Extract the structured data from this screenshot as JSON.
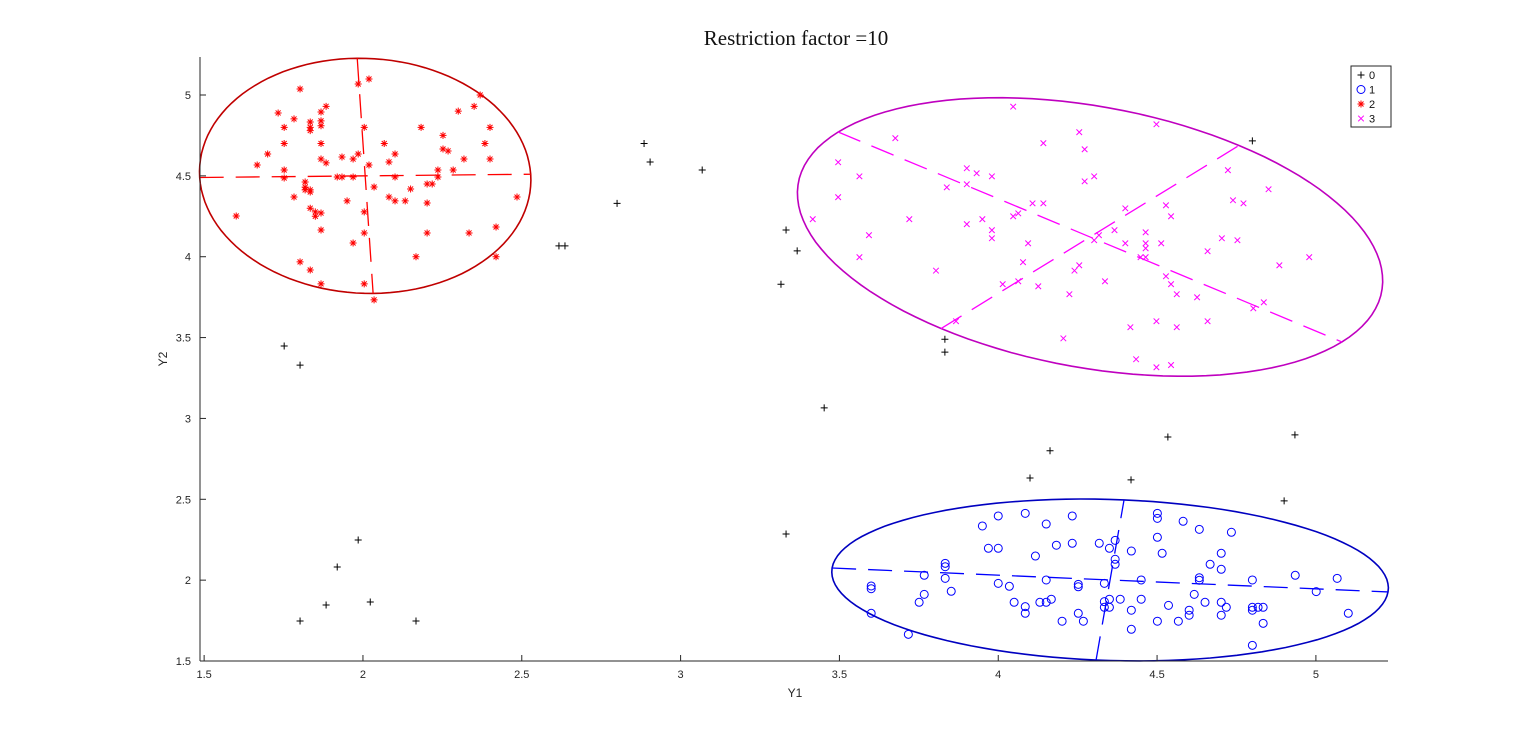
{
  "chart_data": {
    "type": "scatter",
    "title": "Restriction factor =10",
    "xlabel": "Y1",
    "ylabel": "Y2",
    "xlim": [
      1.487,
      5.227
    ],
    "ylim": [
      1.5,
      5.235
    ],
    "xticks": [
      "1.5",
      "2",
      "2.5",
      "3",
      "3.5",
      "4",
      "4.5",
      "5"
    ],
    "yticks": [
      "1.5",
      "2",
      "2.5",
      "3",
      "3.5",
      "4",
      "4.5",
      "5"
    ],
    "grid": false,
    "legend_position": "top-right",
    "series": [
      {
        "name": "0",
        "marker": "plus",
        "color": "#000000",
        "points": [
          [
            2.885,
            4.7
          ],
          [
            2.904,
            4.586
          ],
          [
            3.068,
            4.536
          ],
          [
            2.8,
            4.33
          ],
          [
            2.617,
            4.067
          ],
          [
            2.636,
            4.067
          ],
          [
            3.332,
            4.165
          ],
          [
            3.367,
            4.036
          ],
          [
            3.316,
            3.83
          ],
          [
            3.832,
            3.49
          ],
          [
            3.832,
            3.41
          ],
          [
            1.752,
            3.448
          ],
          [
            1.802,
            3.33
          ],
          [
            3.452,
            3.065
          ],
          [
            4.534,
            2.885
          ],
          [
            4.934,
            2.898
          ],
          [
            4.163,
            2.8
          ],
          [
            4.1,
            2.632
          ],
          [
            4.418,
            2.62
          ],
          [
            4.9,
            2.49
          ],
          [
            4.8,
            4.716
          ],
          [
            3.332,
            2.285
          ],
          [
            1.985,
            2.248
          ],
          [
            1.919,
            2.081
          ],
          [
            1.884,
            1.846
          ],
          [
            2.023,
            1.865
          ],
          [
            1.802,
            1.747
          ],
          [
            2.167,
            1.747
          ]
        ]
      },
      {
        "name": "1",
        "marker": "circle",
        "color": "#0000ff",
        "points": [
          [
            3.95,
            2.335
          ],
          [
            4.0,
            2.397
          ],
          [
            4.085,
            2.413
          ],
          [
            4.151,
            2.347
          ],
          [
            4.233,
            2.397
          ],
          [
            4.501,
            2.413
          ],
          [
            4.501,
            2.382
          ],
          [
            4.582,
            2.364
          ],
          [
            4.633,
            2.314
          ],
          [
            4.734,
            2.296
          ],
          [
            3.969,
            2.197
          ],
          [
            4.0,
            2.197
          ],
          [
            4.183,
            2.216
          ],
          [
            4.233,
            2.228
          ],
          [
            4.318,
            2.228
          ],
          [
            4.35,
            2.197
          ],
          [
            4.368,
            2.246
          ],
          [
            4.419,
            2.18
          ],
          [
            4.501,
            2.265
          ],
          [
            4.516,
            2.166
          ],
          [
            4.702,
            2.166
          ],
          [
            4.117,
            2.149
          ],
          [
            3.833,
            2.104
          ],
          [
            3.833,
            2.083
          ],
          [
            4.368,
            2.129
          ],
          [
            4.368,
            2.098
          ],
          [
            4.667,
            2.098
          ],
          [
            4.702,
            2.067
          ],
          [
            3.6,
            1.964
          ],
          [
            3.6,
            1.947
          ],
          [
            3.767,
            2.03
          ],
          [
            3.833,
            2.011
          ],
          [
            4.0,
            1.98
          ],
          [
            4.035,
            1.962
          ],
          [
            4.151,
            2.001
          ],
          [
            4.252,
            1.974
          ],
          [
            4.252,
            1.959
          ],
          [
            4.334,
            1.98
          ],
          [
            4.45,
            2.001
          ],
          [
            4.633,
            2.015
          ],
          [
            4.633,
            1.999
          ],
          [
            4.8,
            2.001
          ],
          [
            4.935,
            2.03
          ],
          [
            5.067,
            2.011
          ],
          [
            5.001,
            1.929
          ],
          [
            3.767,
            1.912
          ],
          [
            3.751,
            1.863
          ],
          [
            3.852,
            1.931
          ],
          [
            3.6,
            1.795
          ],
          [
            3.717,
            1.665
          ],
          [
            4.05,
            1.863
          ],
          [
            4.085,
            1.836
          ],
          [
            4.085,
            1.795
          ],
          [
            4.131,
            1.863
          ],
          [
            4.151,
            1.863
          ],
          [
            4.167,
            1.882
          ],
          [
            4.201,
            1.746
          ],
          [
            4.252,
            1.795
          ],
          [
            4.268,
            1.746
          ],
          [
            4.334,
            1.867
          ],
          [
            4.334,
            1.832
          ],
          [
            4.35,
            1.882
          ],
          [
            4.35,
            1.832
          ],
          [
            4.384,
            1.882
          ],
          [
            4.419,
            1.814
          ],
          [
            4.419,
            1.696
          ],
          [
            4.45,
            1.882
          ],
          [
            4.501,
            1.746
          ],
          [
            4.536,
            1.844
          ],
          [
            4.567,
            1.746
          ],
          [
            4.601,
            1.814
          ],
          [
            4.601,
            1.783
          ],
          [
            4.617,
            1.912
          ],
          [
            4.651,
            1.863
          ],
          [
            4.702,
            1.863
          ],
          [
            4.718,
            1.832
          ],
          [
            4.702,
            1.783
          ],
          [
            4.8,
            1.832
          ],
          [
            4.8,
            1.814
          ],
          [
            4.818,
            1.832
          ],
          [
            4.834,
            1.832
          ],
          [
            4.834,
            1.733
          ],
          [
            4.8,
            1.597
          ],
          [
            5.102,
            1.795
          ]
        ]
      },
      {
        "name": "2",
        "marker": "asterisk",
        "color": "#ff0000",
        "points": [
          [
            1.802,
            5.037
          ],
          [
            1.985,
            5.068
          ],
          [
            2.019,
            5.099
          ],
          [
            1.733,
            4.889
          ],
          [
            1.783,
            4.852
          ],
          [
            1.752,
            4.8
          ],
          [
            1.834,
            4.833
          ],
          [
            1.834,
            4.8
          ],
          [
            1.834,
            4.78
          ],
          [
            1.868,
            4.895
          ],
          [
            1.884,
            4.93
          ],
          [
            1.868,
            4.84
          ],
          [
            1.868,
            4.81
          ],
          [
            2.004,
            4.8
          ],
          [
            2.183,
            4.8
          ],
          [
            2.3,
            4.9
          ],
          [
            2.35,
            4.93
          ],
          [
            2.369,
            5.0
          ],
          [
            2.4,
            4.8
          ],
          [
            1.752,
            4.7
          ],
          [
            1.868,
            4.7
          ],
          [
            2.067,
            4.7
          ],
          [
            2.252,
            4.75
          ],
          [
            2.384,
            4.7
          ],
          [
            1.7,
            4.635
          ],
          [
            1.667,
            4.567
          ],
          [
            1.752,
            4.536
          ],
          [
            1.752,
            4.487
          ],
          [
            1.868,
            4.604
          ],
          [
            1.884,
            4.58
          ],
          [
            1.934,
            4.617
          ],
          [
            1.969,
            4.604
          ],
          [
            1.985,
            4.635
          ],
          [
            2.019,
            4.567
          ],
          [
            2.101,
            4.635
          ],
          [
            2.082,
            4.586
          ],
          [
            2.252,
            4.666
          ],
          [
            2.268,
            4.654
          ],
          [
            2.318,
            4.604
          ],
          [
            2.4,
            4.604
          ],
          [
            2.236,
            4.536
          ],
          [
            2.284,
            4.536
          ],
          [
            2.236,
            4.493
          ],
          [
            1.919,
            4.493
          ],
          [
            1.934,
            4.493
          ],
          [
            1.969,
            4.493
          ],
          [
            2.101,
            4.493
          ],
          [
            1.818,
            4.462
          ],
          [
            1.818,
            4.413
          ],
          [
            1.834,
            4.413
          ],
          [
            1.834,
            4.4
          ],
          [
            1.818,
            4.43
          ],
          [
            1.783,
            4.369
          ],
          [
            2.035,
            4.431
          ],
          [
            2.202,
            4.45
          ],
          [
            2.218,
            4.45
          ],
          [
            2.15,
            4.419
          ],
          [
            2.082,
            4.369
          ],
          [
            2.101,
            4.345
          ],
          [
            2.133,
            4.345
          ],
          [
            1.95,
            4.345
          ],
          [
            2.202,
            4.332
          ],
          [
            2.485,
            4.369
          ],
          [
            1.834,
            4.3
          ],
          [
            1.85,
            4.277
          ],
          [
            1.868,
            4.27
          ],
          [
            1.85,
            4.25
          ],
          [
            2.004,
            4.277
          ],
          [
            1.868,
            4.165
          ],
          [
            2.004,
            4.147
          ],
          [
            2.202,
            4.147
          ],
          [
            2.334,
            4.147
          ],
          [
            2.419,
            4.184
          ],
          [
            1.601,
            4.252
          ],
          [
            1.969,
            4.085
          ],
          [
            2.167,
            4.0
          ],
          [
            2.419,
            4.0
          ],
          [
            1.802,
            3.968
          ],
          [
            1.834,
            3.918
          ],
          [
            1.868,
            3.832
          ],
          [
            2.004,
            3.832
          ],
          [
            2.035,
            3.733
          ]
        ]
      },
      {
        "name": "3",
        "marker": "x",
        "color": "#ff00ff",
        "points": [
          [
            4.047,
            4.928
          ],
          [
            4.498,
            4.819
          ],
          [
            3.676,
            4.733
          ],
          [
            4.255,
            4.77
          ],
          [
            4.142,
            4.702
          ],
          [
            4.272,
            4.664
          ],
          [
            3.496,
            4.584
          ],
          [
            3.563,
            4.497
          ],
          [
            3.901,
            4.547
          ],
          [
            3.932,
            4.516
          ],
          [
            3.98,
            4.497
          ],
          [
            3.901,
            4.448
          ],
          [
            3.838,
            4.429
          ],
          [
            4.272,
            4.466
          ],
          [
            4.302,
            4.497
          ],
          [
            4.723,
            4.535
          ],
          [
            4.851,
            4.417
          ],
          [
            3.496,
            4.368
          ],
          [
            4.739,
            4.349
          ],
          [
            4.772,
            4.33
          ],
          [
            4.528,
            4.318
          ],
          [
            4.544,
            4.25
          ],
          [
            4.4,
            4.299
          ],
          [
            4.108,
            4.33
          ],
          [
            4.142,
            4.33
          ],
          [
            4.047,
            4.25
          ],
          [
            4.063,
            4.268
          ],
          [
            3.416,
            4.232
          ],
          [
            3.72,
            4.232
          ],
          [
            3.901,
            4.201
          ],
          [
            3.95,
            4.232
          ],
          [
            3.98,
            4.164
          ],
          [
            3.98,
            4.114
          ],
          [
            3.593,
            4.133
          ],
          [
            3.563,
            3.997
          ],
          [
            4.094,
            4.083
          ],
          [
            4.317,
            4.133
          ],
          [
            4.302,
            4.102
          ],
          [
            4.366,
            4.164
          ],
          [
            4.4,
            4.083
          ],
          [
            4.464,
            4.151
          ],
          [
            4.464,
            4.083
          ],
          [
            4.464,
            4.052
          ],
          [
            4.513,
            4.083
          ],
          [
            4.448,
            3.997
          ],
          [
            4.464,
            3.997
          ],
          [
            4.659,
            4.034
          ],
          [
            4.704,
            4.114
          ],
          [
            4.753,
            4.102
          ],
          [
            4.979,
            3.997
          ],
          [
            4.885,
            3.947
          ],
          [
            4.078,
            3.966
          ],
          [
            4.255,
            3.947
          ],
          [
            4.24,
            3.914
          ],
          [
            3.804,
            3.914
          ],
          [
            4.014,
            3.83
          ],
          [
            4.063,
            3.848
          ],
          [
            4.126,
            3.817
          ],
          [
            4.224,
            3.768
          ],
          [
            4.336,
            3.848
          ],
          [
            4.528,
            3.879
          ],
          [
            4.544,
            3.83
          ],
          [
            4.562,
            3.768
          ],
          [
            4.626,
            3.749
          ],
          [
            4.803,
            3.681
          ],
          [
            4.836,
            3.718
          ],
          [
            3.867,
            3.601
          ],
          [
            4.205,
            3.495
          ],
          [
            4.416,
            3.564
          ],
          [
            4.498,
            3.601
          ],
          [
            4.562,
            3.564
          ],
          [
            4.659,
            3.601
          ],
          [
            4.434,
            3.366
          ],
          [
            4.498,
            3.316
          ],
          [
            4.544,
            3.33
          ]
        ]
      }
    ],
    "ellipses": [
      {
        "group": "2",
        "color": "#c00000",
        "center": [
          2.007,
          4.5
        ],
        "axis_a": [
          0.521,
          0.01
        ],
        "axis_b": [
          0.025,
          -0.727
        ]
      },
      {
        "group": "3",
        "color": "#bf00bf",
        "center": [
          4.289,
          4.122
        ],
        "axis_a": [
          0.793,
          -0.649
        ],
        "axis_b": [
          0.469,
          0.566
        ]
      },
      {
        "group": "1",
        "color": "#0000c0",
        "center": [
          4.352,
          2.001
        ],
        "axis_a": [
          0.875,
          -0.074
        ],
        "axis_b": [
          0.044,
          0.495
        ]
      }
    ]
  }
}
